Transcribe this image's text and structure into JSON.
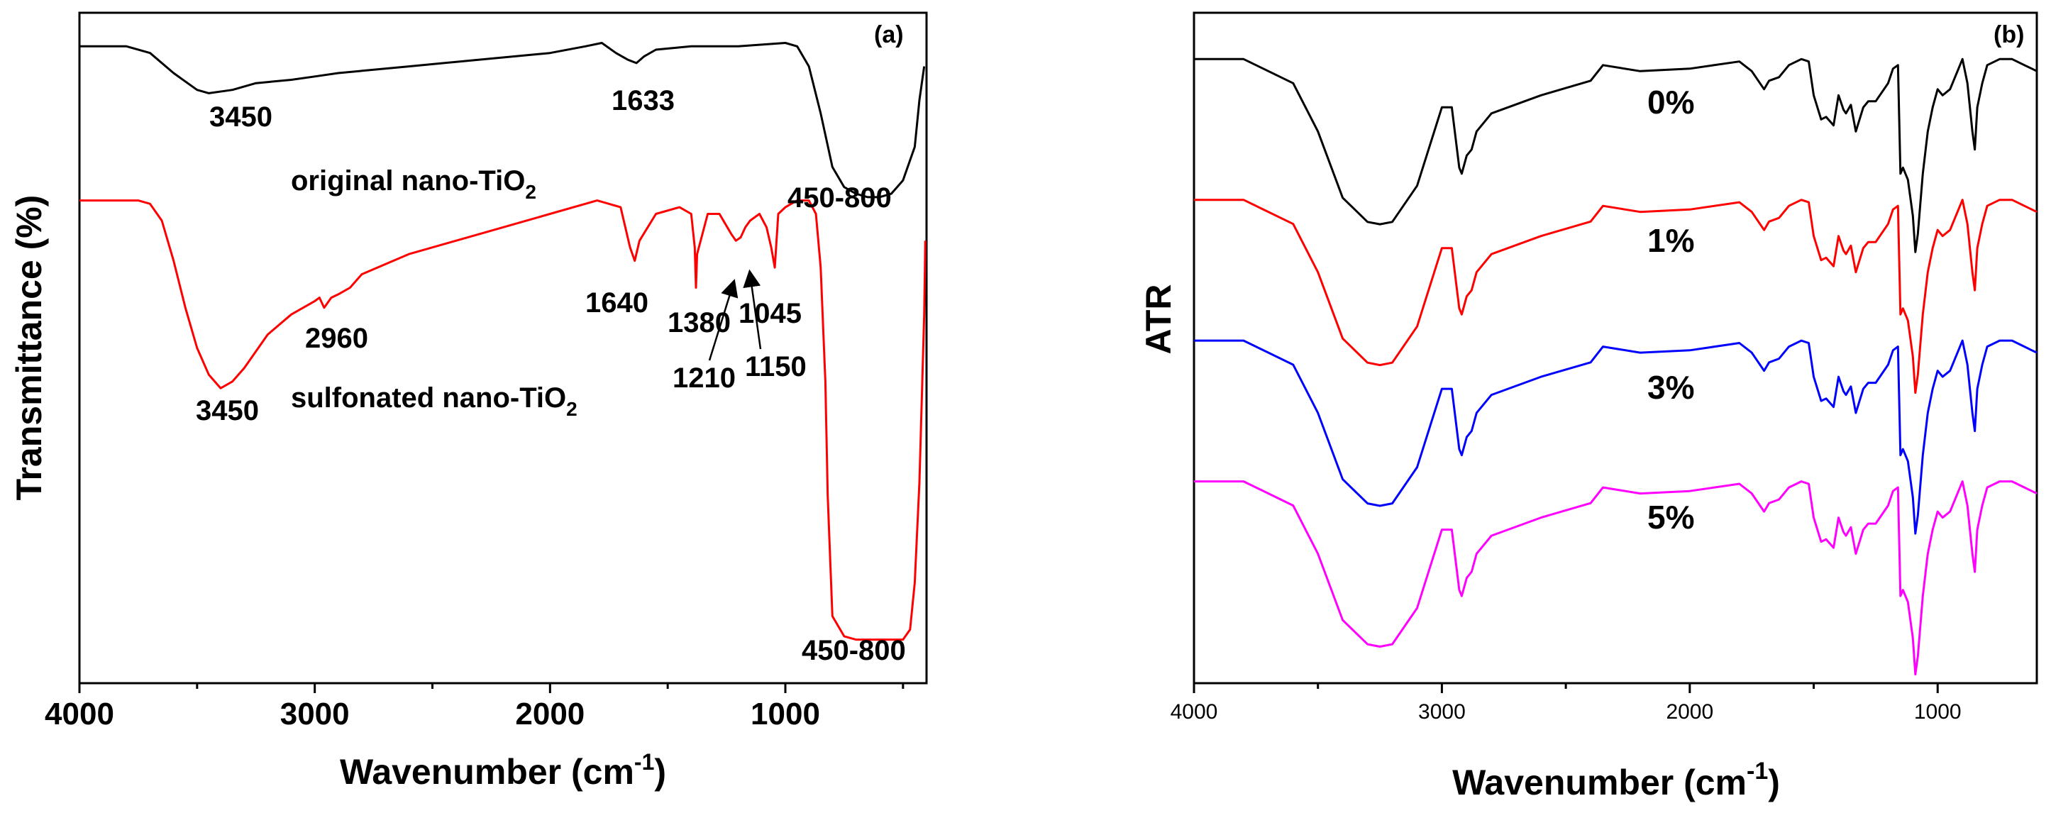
{
  "chart_data": [
    {
      "type": "line",
      "panel_label": "(a)",
      "xlabel": "Wavenumber (cm",
      "xlabel_sup": "-1",
      "xlabel_end": ")",
      "ylabel": "Transmittance (%)",
      "xlim": [
        4000,
        400
      ],
      "ylim": [
        0,
        100
      ],
      "x_ticks": [
        4000,
        3000,
        2000,
        1000
      ],
      "y_ticks_shown": false,
      "series": [
        {
          "name": "original nano-TiO2",
          "color": "#000000",
          "x": [
            4000,
            3800,
            3700,
            3600,
            3500,
            3450,
            3350,
            3250,
            3100,
            3000,
            2900,
            2600,
            2300,
            2000,
            1850,
            1780,
            1720,
            1670,
            1633,
            1600,
            1550,
            1400,
            1200,
            1000,
            950,
            900,
            850,
            800,
            750,
            700,
            650,
            600,
            550,
            500,
            450,
            430,
            410
          ],
          "y": [
            95,
            95,
            94,
            91,
            88.5,
            88,
            88.5,
            89.5,
            90,
            90.5,
            91,
            92,
            93,
            94,
            95,
            95.5,
            94,
            93,
            92.5,
            93.5,
            94.5,
            95,
            95,
            95.5,
            95,
            92,
            85,
            77,
            74,
            73,
            72.5,
            72.5,
            73,
            75,
            80,
            87,
            92
          ]
        },
        {
          "name": "sulfonated nano-TiO2",
          "color": "#ff0000",
          "x": [
            4000,
            3750,
            3700,
            3650,
            3600,
            3550,
            3500,
            3450,
            3400,
            3350,
            3300,
            3200,
            3100,
            3000,
            2980,
            2960,
            2930,
            2900,
            2850,
            2800,
            2700,
            2600,
            2400,
            2200,
            2000,
            1800,
            1700,
            1660,
            1640,
            1620,
            1550,
            1450,
            1400,
            1385,
            1380,
            1375,
            1330,
            1280,
            1230,
            1210,
            1190,
            1170,
            1150,
            1110,
            1080,
            1060,
            1045,
            1030,
            1000,
            950,
            900,
            870,
            850,
            830,
            820,
            800,
            750,
            700,
            650,
            600,
            550,
            500,
            470,
            450,
            430,
            410,
            405
          ],
          "y": [
            72,
            72,
            71.5,
            69,
            63,
            56,
            50,
            46,
            44,
            45,
            47,
            52,
            55,
            57,
            57.5,
            56,
            57.5,
            58,
            59,
            61,
            62.5,
            64,
            66,
            68,
            70,
            72,
            71,
            65,
            63,
            66,
            70,
            71,
            70,
            65,
            59,
            64,
            70,
            70,
            67,
            66,
            66.5,
            68,
            69,
            70,
            68,
            65,
            62,
            70,
            71,
            72,
            72,
            70,
            62,
            45,
            28,
            10,
            7,
            6.5,
            6.5,
            6.5,
            6.5,
            6.5,
            8,
            15,
            30,
            55,
            66
          ]
        }
      ],
      "annotations": [
        {
          "text": "3450"
        },
        {
          "text": "1633"
        },
        {
          "text": "original nano-TiO",
          "sub": "2"
        },
        {
          "text": "450-800"
        },
        {
          "text": "1640"
        },
        {
          "text": "1380"
        },
        {
          "text": "1045"
        },
        {
          "text": "2960"
        },
        {
          "text": "1210"
        },
        {
          "text": "1150"
        },
        {
          "text": "3450"
        },
        {
          "text": "sulfonated nano-TiO",
          "sub": "2"
        },
        {
          "text": "450-800"
        }
      ]
    },
    {
      "type": "line",
      "panel_label": "(b)",
      "xlabel": "Wavenumber (cm",
      "xlabel_sup": "-1",
      "xlabel_end": ")",
      "ylabel": "ATR",
      "xlim": [
        4000,
        600
      ],
      "y_ticks_shown": false,
      "x_ticks": [
        4000,
        3000,
        2000,
        1000
      ],
      "x_base": [
        4000,
        3800,
        3600,
        3500,
        3400,
        3300,
        3250,
        3200,
        3100,
        3000,
        2960,
        2930,
        2920,
        2900,
        2880,
        2860,
        2800,
        2600,
        2400,
        2350,
        2200,
        2000,
        1800,
        1750,
        1700,
        1680,
        1640,
        1600,
        1550,
        1520,
        1500,
        1470,
        1450,
        1420,
        1400,
        1380,
        1370,
        1350,
        1330,
        1300,
        1280,
        1250,
        1200,
        1180,
        1160,
        1150,
        1140,
        1120,
        1100,
        1090,
        1080,
        1070,
        1060,
        1040,
        1020,
        1000,
        980,
        950,
        930,
        900,
        880,
        860,
        850,
        840,
        820,
        800,
        750,
        700,
        650,
        620,
        600
      ],
      "base_offsets": [
        0,
        0,
        -20,
        -60,
        -115,
        -135,
        -137,
        -135,
        -105,
        -40,
        -40,
        -90,
        -95,
        -80,
        -75,
        -60,
        -45,
        -30,
        -18,
        -5,
        -10,
        -8,
        -2,
        -10,
        -25,
        -18,
        -15,
        -5,
        0,
        -2,
        -30,
        -50,
        -48,
        -55,
        -30,
        -42,
        -45,
        -38,
        -60,
        -40,
        -35,
        -35,
        -20,
        -8,
        -5,
        -95,
        -90,
        -100,
        -130,
        -160,
        -145,
        -120,
        -95,
        -60,
        -40,
        -25,
        -30,
        -25,
        -15,
        0,
        -20,
        -60,
        -75,
        -40,
        -20,
        -5,
        0,
        0,
        -5,
        -8,
        -10
      ],
      "series": [
        {
          "name": "0%",
          "color": "#000000",
          "baseline_y_frac": 0.05,
          "scale": 1.0
        },
        {
          "name": "1%",
          "color": "#ff0000",
          "baseline_y_frac": 0.26,
          "scale": 1.0
        },
        {
          "name": "3%",
          "color": "#0000ff",
          "baseline_y_frac": 0.47,
          "scale": 1.0
        },
        {
          "name": "5%",
          "color": "#ff00ff",
          "baseline_y_frac": 0.68,
          "scale": 1.0
        }
      ],
      "series_labels": [
        "0%",
        "1%",
        "3%",
        "5%"
      ]
    }
  ]
}
